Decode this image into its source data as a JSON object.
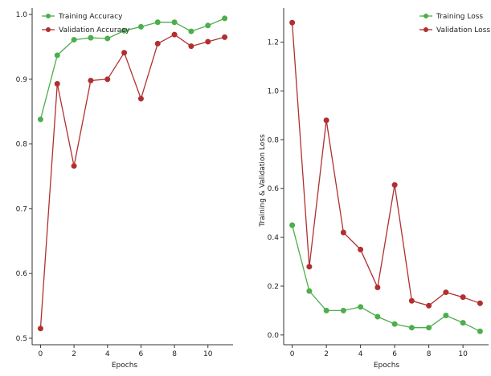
{
  "chart_data": [
    {
      "type": "line",
      "xlabel": "Epochs",
      "ylabel": "",
      "xticks": [
        0,
        2,
        4,
        6,
        8,
        10
      ],
      "yticks": [
        0.5,
        0.6,
        0.7,
        0.8,
        0.9,
        1.0
      ],
      "ytick_labels": [
        "0.5",
        "0.6",
        "0.7",
        "0.8",
        "0.9",
        "1.0"
      ],
      "xlim": [
        -0.5,
        11.5
      ],
      "ylim": [
        0.49,
        1.01
      ],
      "legend_position": "top-left",
      "x": [
        0,
        1,
        2,
        3,
        4,
        5,
        6,
        7,
        8,
        9,
        10,
        11
      ],
      "series": [
        {
          "name": "Training Accuracy",
          "color": "#4cae4c",
          "values": [
            0.838,
            0.937,
            0.961,
            0.964,
            0.963,
            0.975,
            0.981,
            0.988,
            0.988,
            0.974,
            0.983,
            0.994
          ]
        },
        {
          "name": "Validation Accuracy",
          "color": "#b03030",
          "values": [
            0.515,
            0.893,
            0.766,
            0.898,
            0.9,
            0.941,
            0.87,
            0.955,
            0.969,
            0.951,
            0.958,
            0.965
          ]
        }
      ]
    },
    {
      "type": "line",
      "xlabel": "Epochs",
      "ylabel": "Training & Validation Loss",
      "xticks": [
        0,
        2,
        4,
        6,
        8,
        10
      ],
      "yticks": [
        0.0,
        0.2,
        0.4,
        0.6,
        0.8,
        1.0,
        1.2
      ],
      "ytick_labels": [
        "0.0",
        "0.2",
        "0.4",
        "0.6",
        "0.8",
        "1.0",
        "1.2"
      ],
      "xlim": [
        -0.5,
        11.5
      ],
      "ylim": [
        -0.04,
        1.34
      ],
      "legend_position": "top-right",
      "x": [
        0,
        1,
        2,
        3,
        4,
        5,
        6,
        7,
        8,
        9,
        10,
        11
      ],
      "series": [
        {
          "name": "Training Loss",
          "color": "#4cae4c",
          "values": [
            0.45,
            0.18,
            0.1,
            0.1,
            0.115,
            0.075,
            0.045,
            0.03,
            0.03,
            0.08,
            0.05,
            0.015
          ]
        },
        {
          "name": "Validation Loss",
          "color": "#b03030",
          "values": [
            1.28,
            0.28,
            0.88,
            0.42,
            0.35,
            0.195,
            0.615,
            0.14,
            0.12,
            0.175,
            0.155,
            0.13
          ]
        }
      ]
    }
  ]
}
